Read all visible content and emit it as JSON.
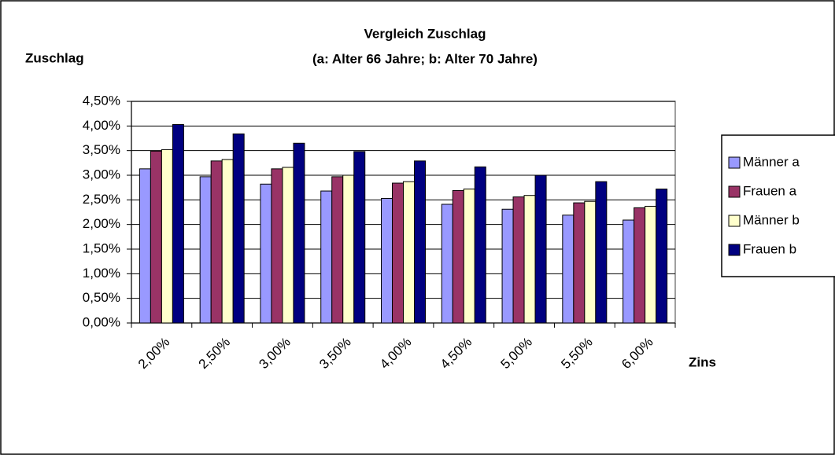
{
  "chart_data": {
    "type": "bar",
    "title": "Vergleich Zuschlag",
    "subtitle": "(a: Alter 66 Jahre; b: Alter 70 Jahre)",
    "y_label": "Zuschlag",
    "x_label": "Zins",
    "categories": [
      "2,00%",
      "2,50%",
      "3,00%",
      "3,50%",
      "4,00%",
      "4,50%",
      "5,00%",
      "5,50%",
      "6,00%"
    ],
    "series": [
      {
        "name": "Männer a",
        "color": "#9999ff",
        "values": [
          3.13,
          2.97,
          2.82,
          2.68,
          2.53,
          2.41,
          2.31,
          2.19,
          2.09
        ]
      },
      {
        "name": "Frauen a",
        "color": "#993366",
        "values": [
          3.49,
          3.29,
          3.13,
          2.97,
          2.84,
          2.69,
          2.56,
          2.44,
          2.34
        ]
      },
      {
        "name": "Männer b",
        "color": "#ffffcc",
        "values": [
          3.52,
          3.32,
          3.16,
          3.0,
          2.87,
          2.72,
          2.59,
          2.47,
          2.37
        ]
      },
      {
        "name": "Frauen b",
        "color": "#000080",
        "values": [
          4.03,
          3.84,
          3.65,
          3.48,
          3.29,
          3.17,
          3.0,
          2.87,
          2.72
        ]
      }
    ],
    "ylim": [
      0,
      4.5
    ],
    "yticks": [
      {
        "value": 0,
        "label": "0,00%"
      },
      {
        "value": 0.5,
        "label": "0,50%"
      },
      {
        "value": 1,
        "label": "1,00%"
      },
      {
        "value": 1.5,
        "label": "1,50%"
      },
      {
        "value": 2,
        "label": "2,00%"
      },
      {
        "value": 2.5,
        "label": "2,50%"
      },
      {
        "value": 3,
        "label": "3,00%"
      },
      {
        "value": 3.5,
        "label": "3,50%"
      },
      {
        "value": 4,
        "label": "4,00%"
      },
      {
        "value": 4.5,
        "label": "4,50%"
      }
    ],
    "grid": true,
    "legend": "right"
  }
}
